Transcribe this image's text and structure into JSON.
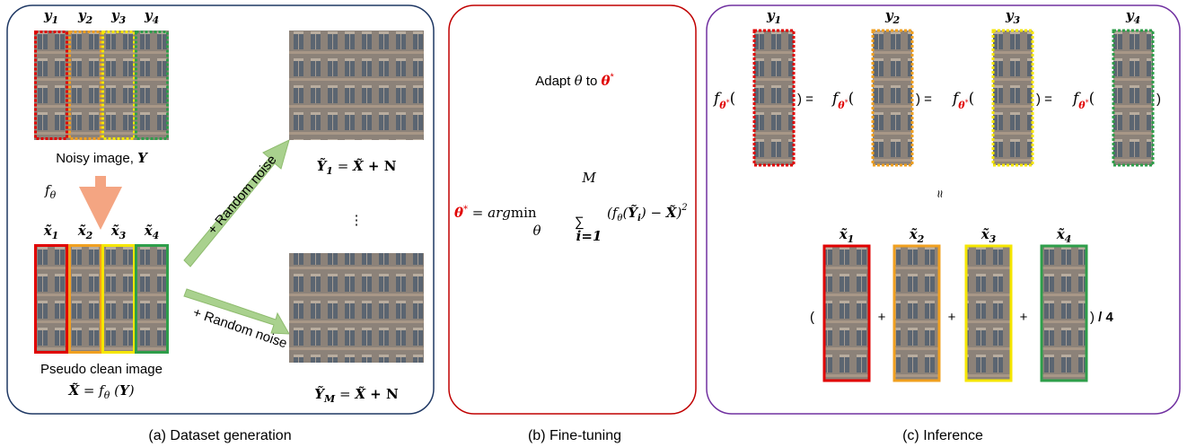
{
  "dataset_generation": {
    "caption": "(a) Dataset generation",
    "noisy_patches": [
      [
        "y",
        "1"
      ],
      [
        "y",
        "2"
      ],
      [
        "y",
        "3"
      ],
      [
        "y",
        "4"
      ]
    ],
    "noisy_caption": [
      "Noisy image, ",
      "Y"
    ],
    "model": [
      "f",
      "θ"
    ],
    "clean_patches": [
      [
        "x̃",
        "1"
      ],
      [
        "x̃",
        "2"
      ],
      [
        "x̃",
        "3"
      ],
      [
        "x̃",
        "4"
      ]
    ],
    "clean_caption": "Pseudo clean image",
    "clean_formula": [
      "X̃",
      " = f",
      "θ",
      " (",
      "Y",
      ")"
    ],
    "noise_labels": [
      "+ Random noise",
      "+ Random noise"
    ],
    "noisy_outputs": [
      [
        "Ỹ",
        "1",
        " = ",
        "X̃",
        " + N"
      ],
      [
        "Ỹ",
        "M",
        " = ",
        "X̃",
        " + N"
      ]
    ],
    "ellipsis": "⋮"
  },
  "fine_tuning": {
    "caption": "(b) Fine-tuning",
    "adapt": [
      "Adapt ",
      "θ",
      " to ",
      "θ",
      "*"
    ],
    "objective": {
      "lhs": [
        "θ",
        "*",
        " = arg",
        "min",
        "θ"
      ],
      "sum": "∑",
      "upper": "M",
      "lower": "i=1",
      "body": [
        "(f",
        "θ",
        "(",
        "Ỹ",
        "i",
        ") − ",
        "X̃",
        ")",
        "2"
      ]
    }
  },
  "inference": {
    "caption": "(c) Inference",
    "noisy_patches": [
      [
        "y",
        "1"
      ],
      [
        "y",
        "2"
      ],
      [
        "y",
        "3"
      ],
      [
        "y",
        "4"
      ]
    ],
    "model": [
      "f",
      "θ",
      "*",
      "("
    ],
    "equals": ") =",
    "close": ")",
    "approx": "≈",
    "clean_patches": [
      [
        "x̃",
        "1"
      ],
      [
        "x̃",
        "2"
      ],
      [
        "x̃",
        "3"
      ],
      [
        "x̃",
        "4"
      ]
    ],
    "open": "(",
    "plus": "+",
    "average": [
      ")",
      " / ",
      "4"
    ]
  }
}
